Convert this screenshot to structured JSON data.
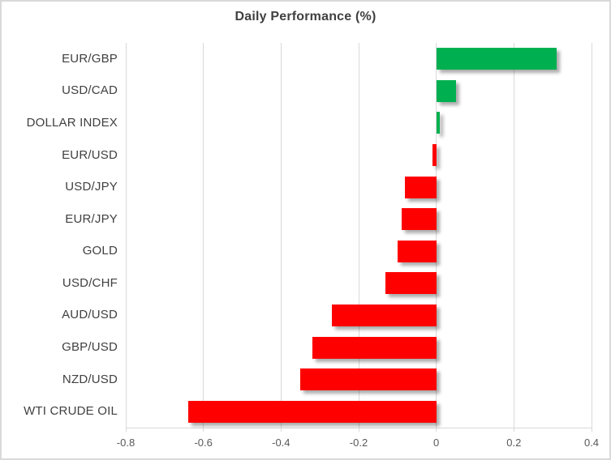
{
  "chart_data": {
    "type": "bar",
    "orientation": "horizontal",
    "title": "Daily Performance (%)",
    "categories": [
      "EUR/GBP",
      "USD/CAD",
      "DOLLAR INDEX",
      "EUR/USD",
      "USD/JPY",
      "EUR/JPY",
      "GOLD",
      "USD/CHF",
      "AUD/USD",
      "GBP/USD",
      "NZD/USD",
      "WTI CRUDE OIL"
    ],
    "values": [
      0.31,
      0.05,
      0.01,
      -0.01,
      -0.08,
      -0.09,
      -0.1,
      -0.13,
      -0.27,
      -0.32,
      -0.35,
      -0.64
    ],
    "xlim": [
      -0.8,
      0.4
    ],
    "xticks": [
      -0.8,
      -0.6,
      -0.4,
      -0.2,
      0,
      0.2,
      0.4
    ],
    "xtick_labels": [
      "-0.8",
      "-0.6",
      "-0.4",
      "-0.2",
      "0",
      "0.2",
      "0.4"
    ],
    "grid": true,
    "legend": false,
    "colors": {
      "positive": "#00B050",
      "negative": "#FF0000",
      "gridline": "#D9D9D9",
      "axis_label": "#595959",
      "category_label": "#404040",
      "title": "#404040",
      "background": "#FFFFFF",
      "border": "#D9D9D9"
    }
  }
}
